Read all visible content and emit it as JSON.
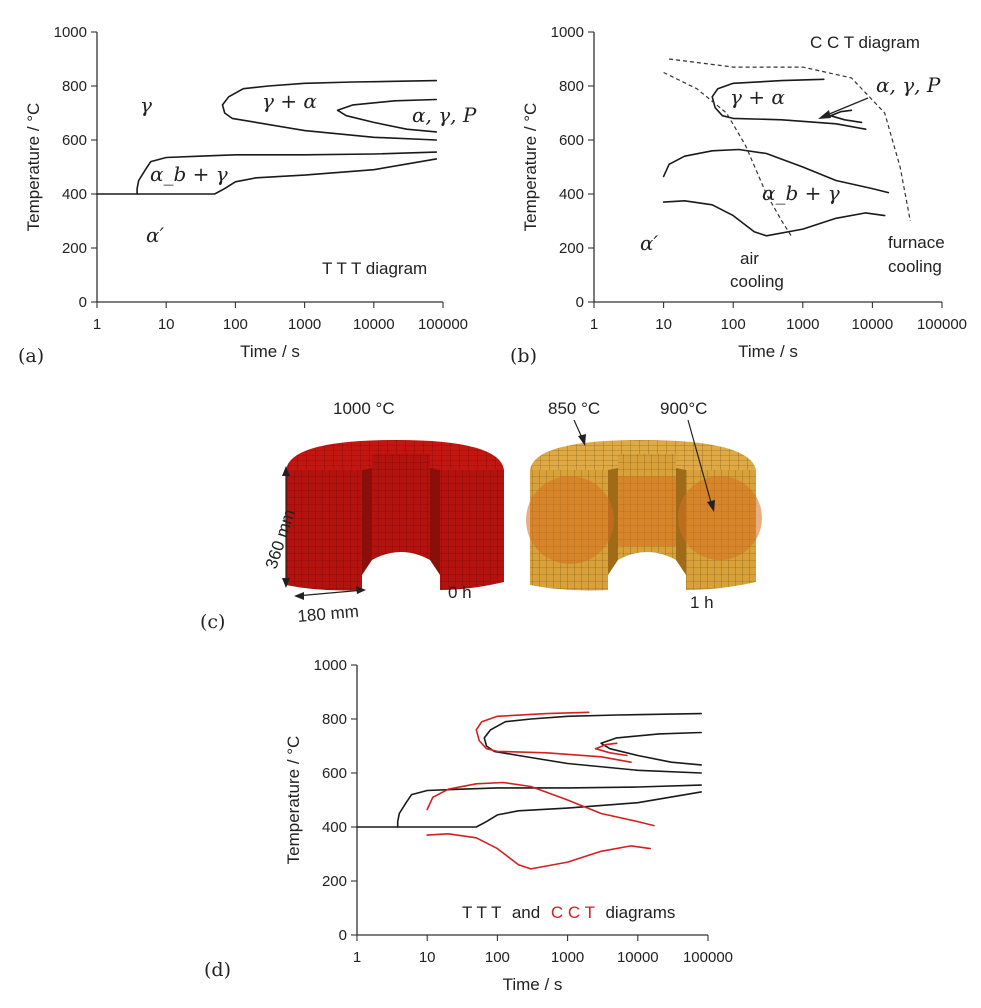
{
  "colors": {
    "ttt": "#1a1a1a",
    "cct": "#d42020",
    "hot": "#b3120f",
    "warm": "#d9a13a",
    "core": "#d5701f"
  },
  "chart_data": [
    {
      "panel": "(a)",
      "type": "line",
      "annotation": "T T T diagram",
      "xlabel": "Time / s",
      "ylabel": "Temperature / °C",
      "xscale": "log",
      "xlim": [
        1,
        100000
      ],
      "ylim": [
        0,
        1000
      ],
      "xticks": [
        "1",
        "10",
        "100",
        "1000",
        "10000",
        "100000"
      ],
      "yticks": [
        "0",
        "200",
        "400",
        "600",
        "800",
        "1000"
      ],
      "phase_labels": [
        "γ",
        "γ + α",
        "α, γ, P",
        "α_b + γ",
        "α′"
      ],
      "series": [
        {
          "points": [
            [
              80000,
              820
            ],
            [
              5000,
              815
            ],
            [
              1000,
              810
            ],
            [
              300,
              800
            ],
            [
              130,
              790
            ],
            [
              80,
              760
            ],
            [
              65,
              730
            ],
            [
              70,
              700
            ],
            [
              90,
              680
            ],
            [
              200,
              665
            ],
            [
              1000,
              635
            ],
            [
              10000,
              610
            ],
            [
              80000,
              600
            ]
          ]
        },
        {
          "points": [
            [
              80000,
              750
            ],
            [
              20000,
              745
            ],
            [
              5000,
              730
            ],
            [
              3000,
              710
            ],
            [
              4000,
              690
            ],
            [
              10000,
              665
            ],
            [
              30000,
              640
            ],
            [
              80000,
              630
            ]
          ]
        },
        {
          "points": [
            [
              3.8,
              400
            ],
            [
              3.8,
              420
            ],
            [
              4,
              450
            ],
            [
              5,
              490
            ],
            [
              6,
              520
            ],
            [
              10,
              535
            ],
            [
              30,
              540
            ],
            [
              100,
              545
            ],
            [
              1000,
              545
            ],
            [
              10000,
              548
            ],
            [
              80000,
              555
            ]
          ]
        },
        {
          "points": [
            [
              1,
              400
            ],
            [
              50,
              400
            ],
            [
              70,
              420
            ],
            [
              100,
              445
            ],
            [
              200,
              460
            ],
            [
              1000,
              470
            ],
            [
              10000,
              490
            ],
            [
              80000,
              530
            ]
          ]
        }
      ]
    },
    {
      "panel": "(b)",
      "type": "line",
      "annotation": "C C T diagram",
      "xlabel": "Time / s",
      "ylabel": "Temperature / °C",
      "xscale": "log",
      "xlim": [
        1,
        100000
      ],
      "ylim": [
        0,
        1000
      ],
      "xticks": [
        "1",
        "10",
        "100",
        "1000",
        "10000",
        "100000"
      ],
      "yticks": [
        "0",
        "200",
        "400",
        "600",
        "800",
        "1000"
      ],
      "phase_labels": [
        "γ + α",
        "α, γ, P",
        "α_b + γ",
        "α′"
      ],
      "cooling_labels": [
        "air",
        "cooling",
        "furnace",
        "cooling"
      ],
      "series": [
        {
          "points": [
            [
              2000,
              825
            ],
            [
              500,
              820
            ],
            [
              100,
              810
            ],
            [
              60,
              790
            ],
            [
              50,
              760
            ],
            [
              55,
              720
            ],
            [
              70,
              690
            ],
            [
              100,
              680
            ],
            [
              500,
              675
            ],
            [
              3000,
              660
            ],
            [
              8000,
              640
            ]
          ]
        },
        {
          "points": [
            [
              5000,
              710
            ],
            [
              3500,
              705
            ],
            [
              2500,
              690
            ],
            [
              4000,
              675
            ],
            [
              7000,
              665
            ]
          ]
        },
        {
          "points": [
            [
              10,
              465
            ],
            [
              12,
              510
            ],
            [
              20,
              540
            ],
            [
              50,
              560
            ],
            [
              120,
              565
            ],
            [
              300,
              550
            ],
            [
              1000,
              500
            ],
            [
              3000,
              450
            ],
            [
              10000,
              420
            ],
            [
              17000,
              405
            ]
          ]
        },
        {
          "points": [
            [
              10,
              370
            ],
            [
              20,
              375
            ],
            [
              50,
              360
            ],
            [
              100,
              320
            ],
            [
              200,
              260
            ],
            [
              300,
              245
            ],
            [
              1000,
              270
            ],
            [
              3000,
              310
            ],
            [
              8000,
              330
            ],
            [
              15000,
              320
            ]
          ]
        }
      ],
      "cooling_curves": [
        {
          "points": [
            [
              10,
              850
            ],
            [
              30,
              790
            ],
            [
              80,
              700
            ],
            [
              150,
              580
            ],
            [
              300,
              400
            ],
            [
              500,
              300
            ],
            [
              700,
              240
            ]
          ]
        },
        {
          "points": [
            [
              12,
              900
            ],
            [
              100,
              870
            ],
            [
              1000,
              870
            ],
            [
              5000,
              830
            ],
            [
              15000,
              700
            ],
            [
              25000,
              500
            ],
            [
              35000,
              300
            ]
          ]
        }
      ]
    },
    {
      "panel": "(d)",
      "type": "line",
      "annotation": [
        "T T T",
        "and",
        "C C T",
        "diagrams"
      ],
      "xlabel": "Time / s",
      "ylabel": "Temperature / °C",
      "xscale": "log",
      "xlim": [
        1,
        100000
      ],
      "ylim": [
        0,
        1000
      ],
      "xticks": [
        "1",
        "10",
        "100",
        "1000",
        "10000",
        "100000"
      ],
      "yticks": [
        "0",
        "200",
        "400",
        "600",
        "800",
        "1000"
      ],
      "overlay": [
        "ttt",
        "cct"
      ]
    }
  ],
  "figure_c": {
    "panel": "(c)",
    "left_temp": "1000 °C",
    "right_temp1": "850 °C",
    "right_temp2": "900°C",
    "height_dim": "360 mm",
    "radius_dim": "180 mm",
    "time_left": "0 h",
    "time_right": "1 h"
  }
}
